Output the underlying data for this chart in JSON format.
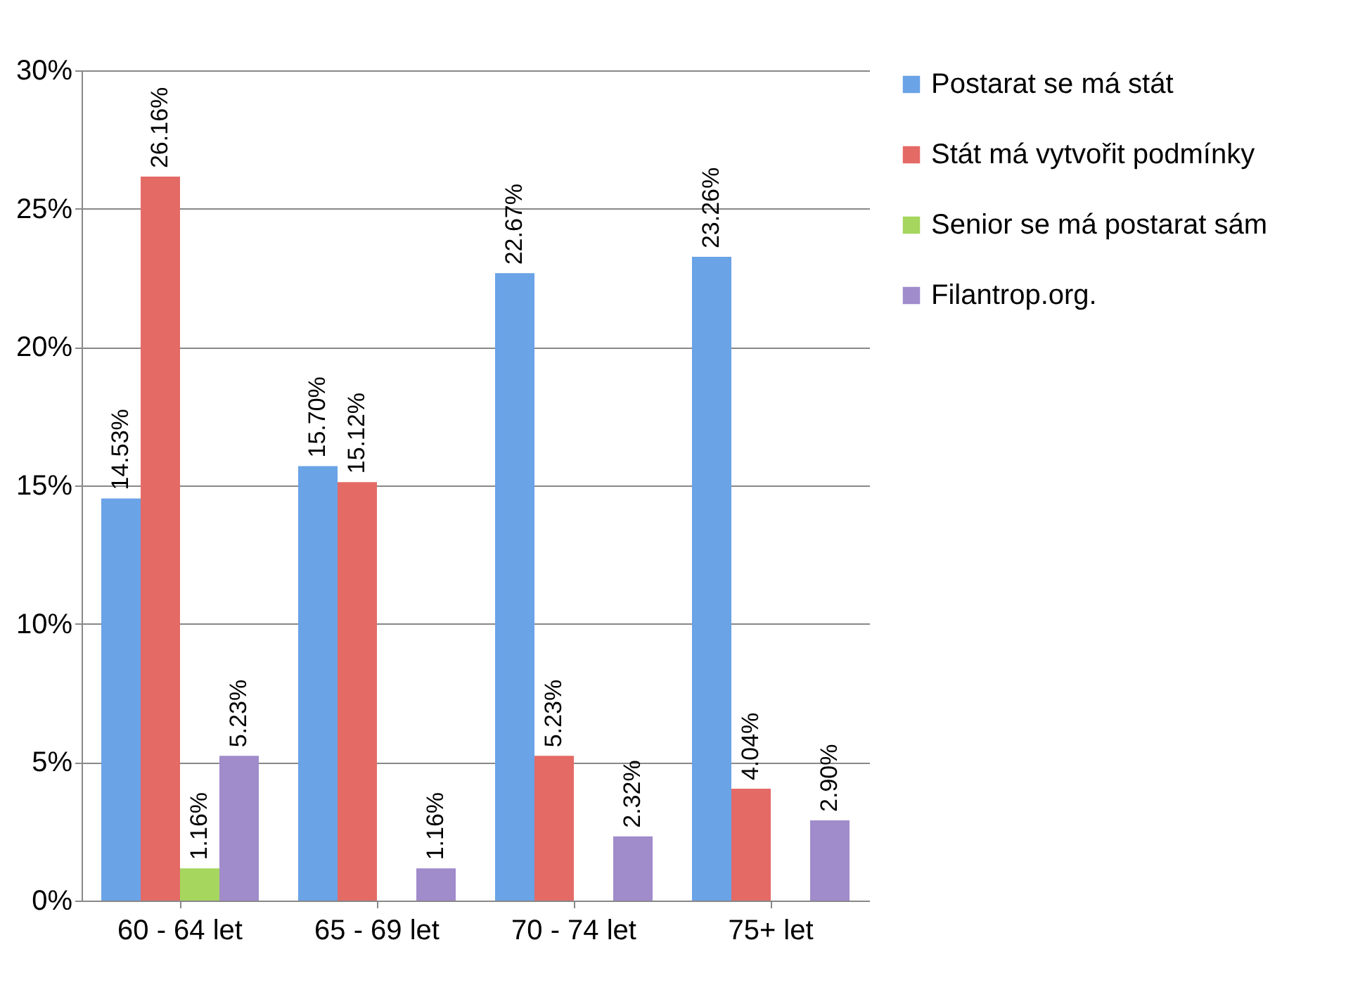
{
  "chart_data": {
    "type": "bar",
    "categories": [
      "60 - 64 let",
      "65 - 69 let",
      "70 - 74 let",
      "75+ let"
    ],
    "series": [
      {
        "name": "Postarat se má stát",
        "color": "#6aa3e6",
        "values": [
          14.53,
          15.7,
          22.67,
          23.26
        ],
        "value_labels": [
          "14.53%",
          "15.70%",
          "22.67%",
          "23.26%"
        ]
      },
      {
        "name": "Stát má vytvořit podmínky",
        "color": "#e46a66",
        "values": [
          26.16,
          15.12,
          5.23,
          4.04
        ],
        "value_labels": [
          "26.16%",
          "15.12%",
          "5.23%",
          "4.04%"
        ]
      },
      {
        "name": "Senior se má postarat sám",
        "color": "#a6d65e",
        "values": [
          1.16,
          null,
          null,
          null
        ],
        "value_labels": [
          "1.16%",
          null,
          null,
          null
        ]
      },
      {
        "name": "Filantrop.org.",
        "color": "#a08bcb",
        "values": [
          5.23,
          1.16,
          2.32,
          2.9
        ],
        "value_labels": [
          "5.23%",
          "1.16%",
          "2.32%",
          "2.90%"
        ]
      }
    ],
    "ylim": [
      0,
      30
    ],
    "yticks": [
      {
        "value": 0,
        "label": "0%"
      },
      {
        "value": 5,
        "label": "5%"
      },
      {
        "value": 10,
        "label": "10%"
      },
      {
        "value": 15,
        "label": "15%"
      },
      {
        "value": 20,
        "label": "20%"
      },
      {
        "value": 25,
        "label": "25%"
      },
      {
        "value": 30,
        "label": "30%"
      }
    ],
    "grid": "y",
    "legend": "right"
  }
}
